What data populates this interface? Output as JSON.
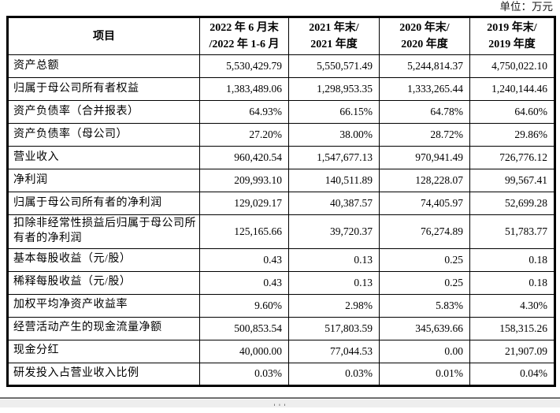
{
  "page": {
    "unit_label": "单位：万元"
  },
  "table": {
    "header": {
      "col0": "项目",
      "col1_line1": "2022 年 6 月末",
      "col1_line2": "/2022 年 1-6 月",
      "col2_line1": "2021 年末/",
      "col2_line2": "2021 年度",
      "col3_line1": "2020 年末/",
      "col3_line2": "2020 年度",
      "col4_line1": "2019 年末/",
      "col4_line2": "2019 年度"
    },
    "rows": [
      {
        "label": "资产总额",
        "values": [
          "5,530,429.79",
          "5,550,571.49",
          "5,244,814.37",
          "4,750,022.10"
        ]
      },
      {
        "label": "归属于母公司所有者权益",
        "values": [
          "1,383,489.06",
          "1,298,953.35",
          "1,333,265.44",
          "1,240,144.46"
        ]
      },
      {
        "label": "资产负债率（合并报表）",
        "values": [
          "64.93%",
          "66.15%",
          "64.78%",
          "64.60%"
        ]
      },
      {
        "label": "资产负债率（母公司）",
        "values": [
          "27.20%",
          "38.00%",
          "28.72%",
          "29.86%"
        ]
      },
      {
        "label": "营业收入",
        "values": [
          "960,420.54",
          "1,547,677.13",
          "970,941.49",
          "726,776.12"
        ]
      },
      {
        "label": "净利润",
        "values": [
          "209,993.10",
          "140,511.89",
          "128,228.07",
          "99,567.41"
        ]
      },
      {
        "label": "归属于母公司所有者的净利润",
        "values": [
          "129,029.17",
          "40,387.57",
          "74,405.97",
          "52,699.28"
        ]
      },
      {
        "label": "扣除非经常性损益后归属于母公司所有者的净利润",
        "values": [
          "125,165.66",
          "39,720.37",
          "76,274.89",
          "51,783.77"
        ]
      },
      {
        "label": "基本每股收益（元/股）",
        "values": [
          "0.43",
          "0.13",
          "0.25",
          "0.18"
        ]
      },
      {
        "label": "稀释每股收益（元/股）",
        "values": [
          "0.43",
          "0.13",
          "0.25",
          "0.18"
        ]
      },
      {
        "label": "加权平均净资产收益率",
        "values": [
          "9.60%",
          "2.98%",
          "5.83%",
          "4.30%"
        ]
      },
      {
        "label": "经营活动产生的现金流量净额",
        "values": [
          "500,853.54",
          "517,803.59",
          "345,639.66",
          "158,315.26"
        ]
      },
      {
        "label": "现金分红",
        "values": [
          "40,000.00",
          "77,044.53",
          "0.00",
          "21,907.09"
        ]
      },
      {
        "label": "研发投入占营业收入比例",
        "values": [
          "0.03%",
          "0.03%",
          "0.01%",
          "0.04%"
        ]
      }
    ]
  },
  "footer": {
    "handle_glyph": "'''"
  }
}
